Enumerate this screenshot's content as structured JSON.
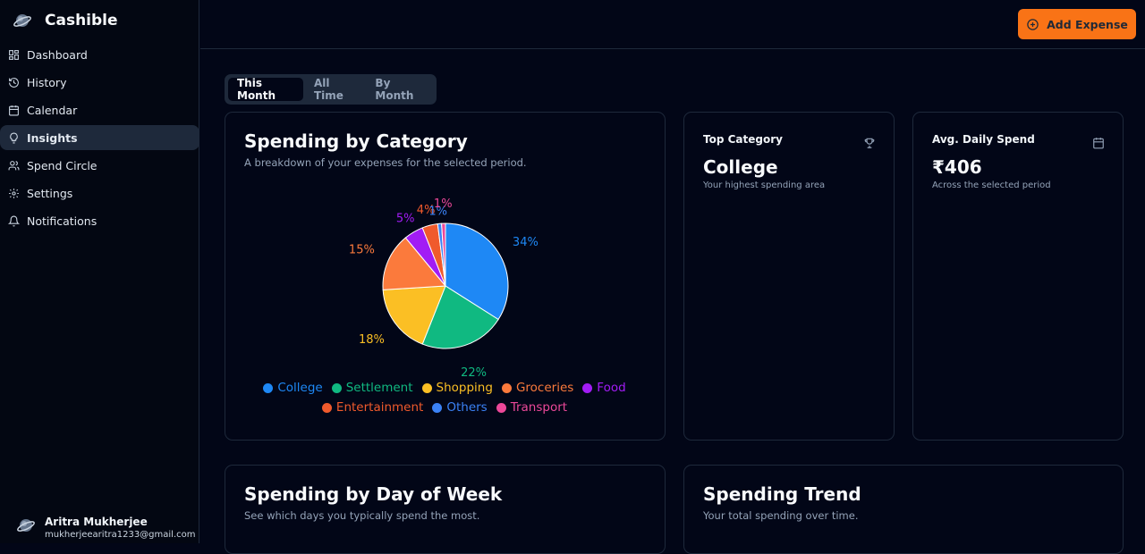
{
  "app": {
    "name": "Cashible"
  },
  "sidebar": {
    "items": [
      {
        "label": "Dashboard",
        "icon": "layout-grid-icon"
      },
      {
        "label": "History",
        "icon": "history-icon"
      },
      {
        "label": "Calendar",
        "icon": "calendar-icon"
      },
      {
        "label": "Insights",
        "icon": "lightbulb-icon",
        "active": true
      },
      {
        "label": "Spend Circle",
        "icon": "users-icon"
      },
      {
        "label": "Settings",
        "icon": "gear-icon"
      },
      {
        "label": "Notifications",
        "icon": "bell-icon"
      }
    ]
  },
  "user": {
    "name": "Aritra Mukherjee",
    "email": "mukherjeearitra1233@gmail.com"
  },
  "header": {
    "add_button_label": "Add Expense"
  },
  "period_tabs": {
    "items": [
      "This Month",
      "All Time",
      "By Month"
    ],
    "selected": "This Month"
  },
  "category_card": {
    "title": "Spending by Category",
    "subtitle": "A breakdown of your expenses for the selected period."
  },
  "top_category_card": {
    "title": "Top Category",
    "value": "College",
    "subtitle": "Your highest spending area"
  },
  "avg_daily_card": {
    "title": "Avg. Daily Spend",
    "value": "₹406",
    "subtitle": "Across the selected period"
  },
  "day_of_week_card": {
    "title": "Spending by Day of Week",
    "subtitle": "See which days you typically spend the most."
  },
  "trend_card": {
    "title": "Spending Trend",
    "subtitle": "Your total spending over time."
  },
  "chart_data": {
    "type": "pie",
    "title": "Spending by Category",
    "slices": [
      {
        "label": "College",
        "value": 34,
        "display": "34%",
        "color": "#1e88f5"
      },
      {
        "label": "Settlement",
        "value": 22,
        "display": "22%",
        "color": "#10b981"
      },
      {
        "label": "Shopping",
        "value": 18,
        "display": "18%",
        "color": "#fbbf24"
      },
      {
        "label": "Groceries",
        "value": 15,
        "display": "15%",
        "color": "#fb7a3c"
      },
      {
        "label": "Food",
        "value": 5,
        "display": "5%",
        "color": "#a21cf5"
      },
      {
        "label": "Entertainment",
        "value": 4,
        "display": "4%",
        "color": "#f05a2c"
      },
      {
        "label": "Others",
        "value": 1,
        "display": "1%",
        "color": "#3b82f6"
      },
      {
        "label": "Transport",
        "value": 1,
        "display": "1%",
        "color": "#ec4899"
      }
    ],
    "legend_position": "bottom"
  }
}
